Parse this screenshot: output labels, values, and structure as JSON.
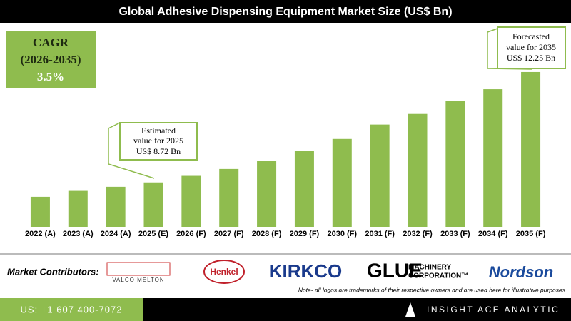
{
  "chart_data": {
    "type": "bar",
    "title": "Global Adhesive Dispensing Equipment Market Size (US$ Bn)",
    "categories": [
      "2022 (A)",
      "2023 (A)",
      "2024 (A)",
      "2025 (E)",
      "2026 (F)",
      "2027 (F)",
      "2028 (F)",
      "2029 (F)",
      "2030 (F)",
      "2031 (F)",
      "2032 (F)",
      "2033 (F)",
      "2034 (F)",
      "2035 (F)"
    ],
    "values": [
      8.26,
      8.45,
      8.58,
      8.72,
      8.93,
      9.15,
      9.4,
      9.72,
      10.11,
      10.57,
      10.91,
      11.32,
      11.7,
      12.25
    ],
    "color": "#8fbc4e",
    "ylim": [
      7.3,
      12.5
    ],
    "annotations": {
      "cagr": [
        "CAGR",
        "(2026-2035)",
        "3.5%"
      ],
      "estimated": [
        "Estimated",
        "value for 2025",
        "US$ 8.72 Bn"
      ],
      "forecasted": [
        "Forecasted",
        "value for 2035",
        "US$ 12.25 Bn"
      ]
    }
  },
  "contributors": {
    "label": "Market Contributors:",
    "logos": [
      "VALCO MELTON",
      "Henkel",
      "KIRKCO",
      "GLUE",
      "MACHINERY",
      "CORPORATION™",
      "Nordson"
    ],
    "note": "Note- all logos are trademarks of their respective owners and are used here for illustrative purposes"
  },
  "footer": {
    "phone": "US: +1 607 400-7072",
    "brand": "INSIGHT ACE ANALYTIC"
  }
}
